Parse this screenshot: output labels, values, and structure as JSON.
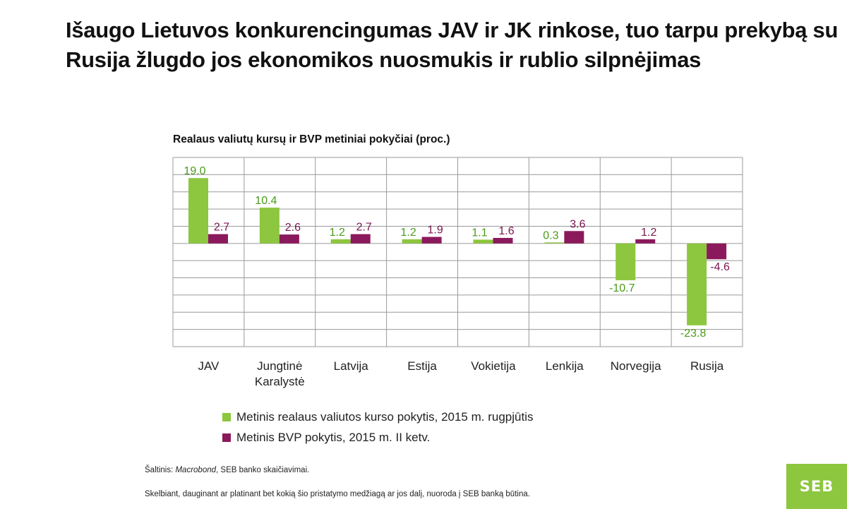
{
  "headline": "Išaugo Lietuvos konkurencingumas JAV ir JK rinkose, tuo tarpu prekybą su Rusija žlugdo jos ekonomikos nuosmukis ir rublio silpnėjimas",
  "source": {
    "prefix": "Šaltinis: ",
    "italic": "Macrobond",
    "suffix": ", SEB banko skaičiavimai."
  },
  "disclaimer": "Skelbiant, dauginant ar platinant bet kokią šio pristatymo medžiagą ar jos dalį, nuoroda į SEB banką būtina.",
  "logo": "SEB",
  "colors": {
    "green": "#8dc63f",
    "purple": "#8b1a5c"
  },
  "chart_data": {
    "type": "bar",
    "title": "Realaus valiutų kursų ir BVP metiniai pokyčiai (proc.)",
    "categories": [
      "JAV",
      "Jungtinė Karalystė",
      "Latvija",
      "Estija",
      "Vokietija",
      "Lenkija",
      "Norvegija",
      "Rusija"
    ],
    "series": [
      {
        "name": "Metinis realaus valiutos kurso pokytis, 2015 m. rugpjūtis",
        "color": "#8dc63f",
        "values": [
          19.0,
          10.4,
          1.2,
          1.2,
          1.1,
          0.3,
          -10.7,
          -23.8
        ]
      },
      {
        "name": "Metinis BVP pokytis, 2015 m. II ketv.",
        "color": "#8b1a5c",
        "values": [
          2.7,
          2.6,
          2.7,
          1.9,
          1.6,
          3.6,
          1.2,
          -4.6
        ]
      }
    ],
    "ylim": [
      -30,
      25
    ],
    "grid": true,
    "legend": "bottom"
  }
}
